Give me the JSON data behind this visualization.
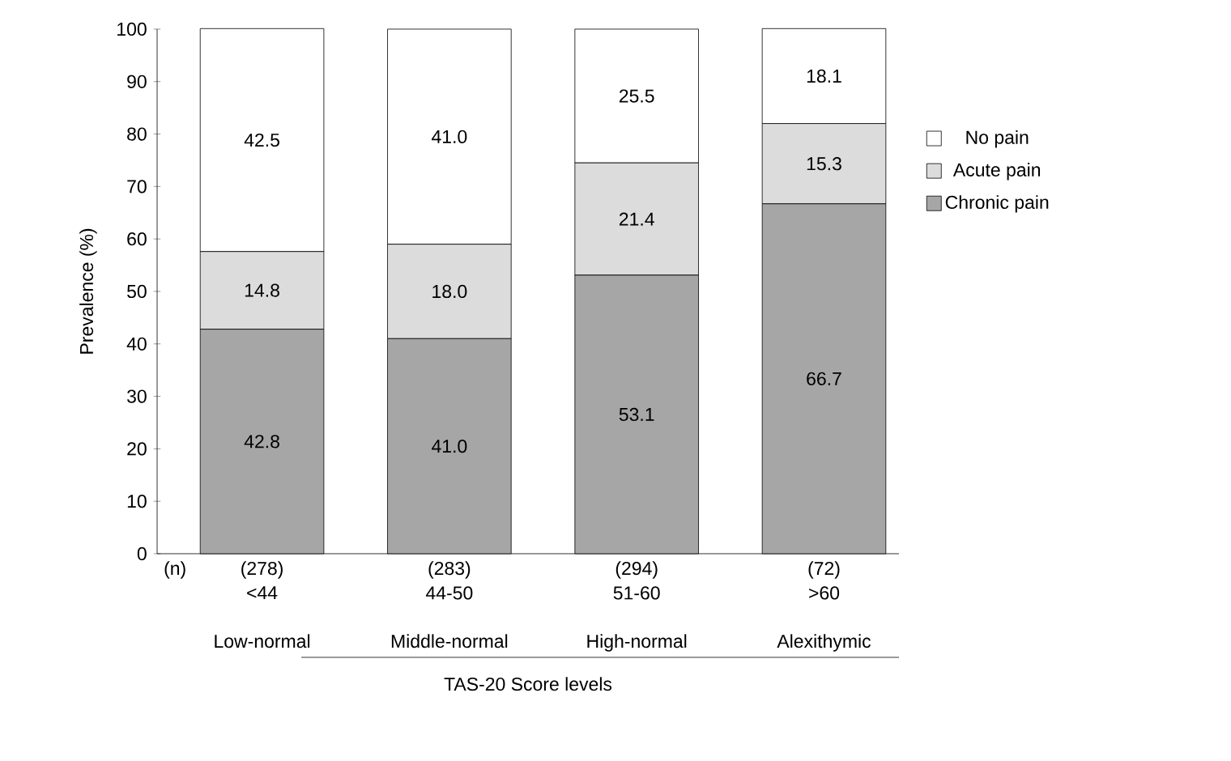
{
  "chart_data": {
    "type": "bar",
    "stacked": true,
    "ylabel": "Prevalence (%)",
    "xlabel": "TAS-20 Score levels",
    "categories": [
      "<44",
      "44-50",
      "51-60",
      ">60"
    ],
    "series": [
      {
        "name": "Chronic pain",
        "color": "#a6a6a6",
        "values": [
          42.8,
          41.0,
          53.1,
          66.7
        ],
        "value_labels": [
          "42.8",
          "41.0",
          "53.1",
          "66.7"
        ]
      },
      {
        "name": "Acute pain",
        "color": "#dcdcdc",
        "values": [
          14.8,
          18.0,
          21.4,
          15.3
        ],
        "value_labels": [
          "14.8",
          "18.0",
          "21.4",
          "15.3"
        ]
      },
      {
        "name": "No pain",
        "color": "#ffffff",
        "values": [
          42.5,
          41.0,
          25.5,
          18.1
        ],
        "value_labels": [
          "42.5",
          "41.0",
          "25.5",
          "18.1"
        ]
      }
    ],
    "ylim": [
      0,
      100
    ],
    "yticks": [
      0,
      10,
      20,
      30,
      40,
      50,
      60,
      70,
      80,
      90,
      100
    ],
    "legend": "right",
    "grid": false,
    "annotations": [
      "(n)",
      "(278)",
      "(283)",
      "(294)",
      "(72)",
      "Low-normal",
      "Middle-normal",
      "High-normal",
      "Alexithymic"
    ]
  }
}
